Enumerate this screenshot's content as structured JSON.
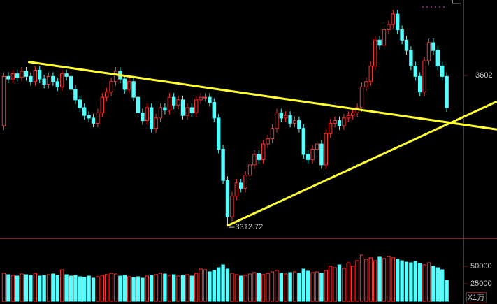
{
  "chart_data": {
    "type": "candlestick",
    "ylim": [
      3290,
      3747
    ],
    "yticks": [
      3602
    ],
    "volume_ylim": [
      0,
      86000
    ],
    "volume_ticks": [
      50000,
      25000
    ],
    "volume_unit_label": "X1万",
    "up_color": "#ff3232",
    "down_color": "#54ffff",
    "open": [
      3505,
      3600,
      3595,
      3605,
      3598,
      3610,
      3600,
      3590,
      3612,
      3595,
      3585,
      3600,
      3590,
      3580,
      3605,
      3600,
      3575,
      3555,
      3540,
      3525,
      3520,
      3510,
      3530,
      3560,
      3570,
      3590,
      3610,
      3595,
      3575,
      3590,
      3560,
      3530,
      3515,
      3540,
      3500,
      3520,
      3540,
      3535,
      3560,
      3545,
      3555,
      3525,
      3540,
      3530,
      3555,
      3560,
      3560,
      3550,
      3520,
      3460,
      3400,
      3330,
      3370,
      3395,
      3385,
      3410,
      3430,
      3450,
      3440,
      3470,
      3480,
      3500,
      3530,
      3520,
      3525,
      3510,
      3515,
      3500,
      3450,
      3440,
      3460,
      3470,
      3430,
      3490,
      3510,
      3515,
      3505,
      3520,
      3525,
      3530,
      3540,
      3580,
      3590,
      3620,
      3670,
      3660,
      3690,
      3700,
      3720,
      3690,
      3670,
      3650,
      3620,
      3600,
      3570,
      3630,
      3665,
      3650,
      3620,
      3600
    ],
    "high": [
      3608,
      3608,
      3613,
      3613,
      3618,
      3618,
      3608,
      3620,
      3620,
      3603,
      3608,
      3608,
      3598,
      3613,
      3613,
      3608,
      3583,
      3563,
      3548,
      3533,
      3528,
      3538,
      3568,
      3578,
      3598,
      3618,
      3618,
      3603,
      3598,
      3598,
      3568,
      3538,
      3548,
      3548,
      3528,
      3548,
      3548,
      3568,
      3568,
      3563,
      3563,
      3548,
      3548,
      3563,
      3568,
      3568,
      3568,
      3558,
      3528,
      3468,
      3408,
      3378,
      3403,
      3403,
      3418,
      3438,
      3458,
      3458,
      3478,
      3488,
      3508,
      3538,
      3538,
      3533,
      3533,
      3523,
      3523,
      3508,
      3458,
      3468,
      3478,
      3478,
      3498,
      3518,
      3523,
      3523,
      3528,
      3533,
      3538,
      3548,
      3588,
      3598,
      3628,
      3678,
      3678,
      3698,
      3708,
      3728,
      3728,
      3698,
      3678,
      3658,
      3628,
      3608,
      3638,
      3673,
      3673,
      3658,
      3628,
      3608
    ],
    "low": [
      3497,
      3587,
      3587,
      3590,
      3590,
      3592,
      3582,
      3582,
      3587,
      3577,
      3577,
      3582,
      3572,
      3572,
      3592,
      3567,
      3547,
      3532,
      3517,
      3512,
      3502,
      3502,
      3522,
      3552,
      3562,
      3582,
      3587,
      3567,
      3567,
      3552,
      3522,
      3507,
      3507,
      3492,
      3492,
      3512,
      3527,
      3527,
      3537,
      3537,
      3517,
      3517,
      3522,
      3522,
      3547,
      3552,
      3542,
      3512,
      3452,
      3392,
      3312.72,
      3322,
      3362,
      3377,
      3377,
      3402,
      3422,
      3432,
      3432,
      3462,
      3472,
      3492,
      3512,
      3512,
      3502,
      3502,
      3492,
      3442,
      3432,
      3432,
      3452,
      3422,
      3422,
      3482,
      3502,
      3497,
      3497,
      3512,
      3517,
      3522,
      3532,
      3572,
      3582,
      3612,
      3652,
      3652,
      3682,
      3692,
      3682,
      3662,
      3642,
      3612,
      3592,
      3562,
      3562,
      3622,
      3642,
      3612,
      3592,
      3532
    ],
    "close": [
      3600,
      3595,
      3605,
      3598,
      3610,
      3600,
      3590,
      3612,
      3595,
      3585,
      3600,
      3590,
      3580,
      3605,
      3600,
      3575,
      3555,
      3540,
      3525,
      3520,
      3510,
      3530,
      3560,
      3570,
      3590,
      3610,
      3595,
      3575,
      3590,
      3560,
      3530,
      3515,
      3540,
      3500,
      3520,
      3540,
      3535,
      3560,
      3545,
      3555,
      3525,
      3540,
      3530,
      3555,
      3560,
      3560,
      3550,
      3520,
      3460,
      3400,
      3330,
      3370,
      3395,
      3385,
      3410,
      3430,
      3450,
      3440,
      3470,
      3480,
      3500,
      3530,
      3520,
      3525,
      3510,
      3515,
      3500,
      3450,
      3440,
      3460,
      3470,
      3430,
      3490,
      3510,
      3515,
      3505,
      3520,
      3525,
      3530,
      3540,
      3580,
      3590,
      3620,
      3670,
      3660,
      3690,
      3700,
      3720,
      3690,
      3670,
      3650,
      3620,
      3600,
      3570,
      3630,
      3665,
      3650,
      3620,
      3600,
      3540
    ],
    "volume": [
      40000,
      38000,
      37000,
      36000,
      39000,
      38000,
      37000,
      40000,
      36000,
      37000,
      38000,
      39000,
      37000,
      45000,
      38000,
      36000,
      37000,
      35000,
      34000,
      36000,
      33000,
      35000,
      37000,
      38000,
      40000,
      39000,
      36000,
      37000,
      35000,
      34000,
      35000,
      33000,
      36000,
      37000,
      38000,
      40000,
      39000,
      37000,
      38000,
      36000,
      37000,
      38000,
      36000,
      40000,
      46000,
      45000,
      42000,
      44000,
      48000,
      52000,
      46000,
      40000,
      38000,
      36000,
      37000,
      39000,
      41000,
      40000,
      38000,
      40000,
      42000,
      44000,
      40000,
      39000,
      41000,
      42000,
      40000,
      46000,
      43000,
      41000,
      42000,
      40000,
      44000,
      50000,
      48000,
      52000,
      47000,
      55000,
      50000,
      58000,
      66000,
      60000,
      62000,
      58000,
      63000,
      61000,
      64000,
      62000,
      60000,
      58000,
      56000,
      55000,
      57000,
      54000,
      52000,
      55000,
      50000,
      48000,
      45000,
      30000
    ],
    "trendlines": [
      {
        "color": "#ffff33",
        "start": [
          5.5,
          3628
        ],
        "end": [
          110.3,
          3498
        ]
      },
      {
        "color": "#ffff33",
        "start": [
          50,
          3312.72
        ],
        "end": [
          110.3,
          3552
        ]
      }
    ]
  }
}
